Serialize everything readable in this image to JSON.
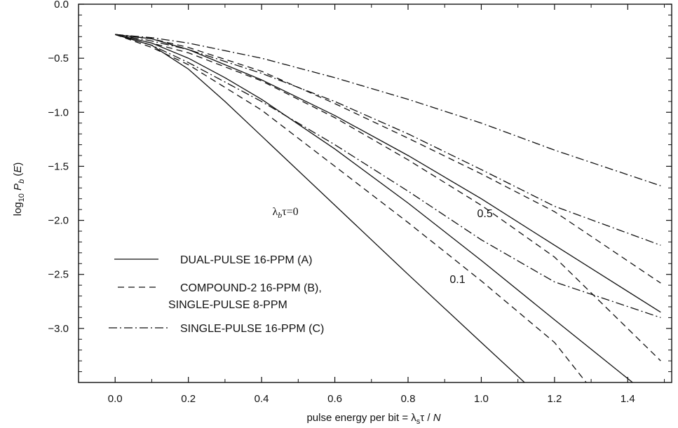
{
  "chart_data": {
    "type": "line",
    "xlabel": "pulse energy per bit = λsτ / N",
    "ylabel": "log10 Pb (E)",
    "xlim": [
      -0.1,
      1.52
    ],
    "ylim": [
      -3.5,
      0.0
    ],
    "xticks": [
      "0.0",
      "0.2",
      "0.4",
      "0.6",
      "0.8",
      "1.0",
      "1.2",
      "1.4"
    ],
    "yticks": [
      "0.0",
      "−0.5",
      "−1.0",
      "−1.5",
      "−2.0",
      "−2.5",
      "−3.0"
    ],
    "grid": false,
    "legend_position": "bottom-left",
    "legend": [
      {
        "label": "DUAL-PULSE 16-PPM (A)",
        "style": "solid"
      },
      {
        "label": "COMPOUND-2 16-PPM (B),",
        "label2": "SINGLE-PULSE 8-PPM",
        "style": "dashed"
      },
      {
        "label": "SINGLE-PULSE 16-PPM (C)",
        "style": "dashdot"
      }
    ],
    "annotations": [
      {
        "text": "λbτ=0",
        "parts": [
          "λ",
          "b",
          "τ=0"
        ],
        "x": 0.465,
        "y": -1.95
      },
      {
        "text": "0.5",
        "x": 1.01,
        "y": -1.97
      },
      {
        "text": "0.1",
        "x": 0.935,
        "y": -2.58
      }
    ],
    "series": [
      {
        "style": "solid",
        "group": "λbτ=0",
        "x": [
          0.0,
          0.1,
          0.2,
          0.3,
          0.4,
          0.6,
          0.8,
          1.0,
          1.15
        ],
        "y": [
          -0.28,
          -0.38,
          -0.6,
          -0.9,
          -1.22,
          -1.86,
          -2.5,
          -3.13,
          -3.6
        ]
      },
      {
        "style": "solid",
        "group": "0.1",
        "x": [
          0.0,
          0.1,
          0.2,
          0.3,
          0.4,
          0.6,
          0.8,
          1.0,
          1.2,
          1.45
        ],
        "y": [
          -0.28,
          -0.36,
          -0.5,
          -0.68,
          -0.88,
          -1.34,
          -1.84,
          -2.37,
          -2.92,
          -3.6
        ]
      },
      {
        "style": "solid",
        "group": "0.5",
        "x": [
          0.0,
          0.1,
          0.2,
          0.4,
          0.6,
          0.8,
          1.0,
          1.2,
          1.49
        ],
        "y": [
          -0.28,
          -0.32,
          -0.42,
          -0.7,
          -1.03,
          -1.4,
          -1.8,
          -2.23,
          -2.85
        ]
      },
      {
        "style": "dashed",
        "group": "λbτ=0",
        "x": [
          0.0,
          0.1,
          0.2,
          0.4,
          0.6,
          0.8,
          1.0,
          1.2,
          1.31
        ],
        "y": [
          -0.28,
          -0.4,
          -0.56,
          -0.98,
          -1.5,
          -2.02,
          -2.56,
          -3.13,
          -3.6
        ]
      },
      {
        "style": "dashed",
        "group": "0.1",
        "x": [
          0.0,
          0.1,
          0.2,
          0.4,
          0.6,
          0.8,
          1.0,
          1.2,
          1.49
        ],
        "y": [
          -0.28,
          -0.36,
          -0.45,
          -0.71,
          -1.05,
          -1.44,
          -1.86,
          -2.34,
          -3.3
        ]
      },
      {
        "style": "dashed",
        "group": "0.5",
        "x": [
          0.0,
          0.1,
          0.2,
          0.4,
          0.6,
          0.8,
          1.0,
          1.2,
          1.49
        ],
        "y": [
          -0.28,
          -0.32,
          -0.4,
          -0.62,
          -0.92,
          -1.24,
          -1.57,
          -1.92,
          -2.58
        ]
      },
      {
        "style": "dashdot",
        "group": "λbτ=0",
        "x": [
          0.0,
          0.1,
          0.2,
          0.4,
          0.6,
          0.8,
          1.0,
          1.2,
          1.49
        ],
        "y": [
          -0.28,
          -0.38,
          -0.54,
          -0.9,
          -1.3,
          -1.73,
          -2.18,
          -2.57,
          -2.9
        ]
      },
      {
        "style": "dashdot",
        "group": "0.1",
        "x": [
          0.0,
          0.1,
          0.2,
          0.4,
          0.6,
          0.8,
          1.0,
          1.2,
          1.49
        ],
        "y": [
          -0.28,
          -0.34,
          -0.42,
          -0.64,
          -0.9,
          -1.2,
          -1.53,
          -1.87,
          -2.23
        ]
      },
      {
        "style": "dashdot",
        "group": "0.5",
        "x": [
          0.0,
          0.1,
          0.2,
          0.4,
          0.6,
          0.8,
          1.0,
          1.2,
          1.49
        ],
        "y": [
          -0.28,
          -0.31,
          -0.36,
          -0.5,
          -0.68,
          -0.88,
          -1.1,
          -1.35,
          -1.68
        ]
      }
    ]
  }
}
